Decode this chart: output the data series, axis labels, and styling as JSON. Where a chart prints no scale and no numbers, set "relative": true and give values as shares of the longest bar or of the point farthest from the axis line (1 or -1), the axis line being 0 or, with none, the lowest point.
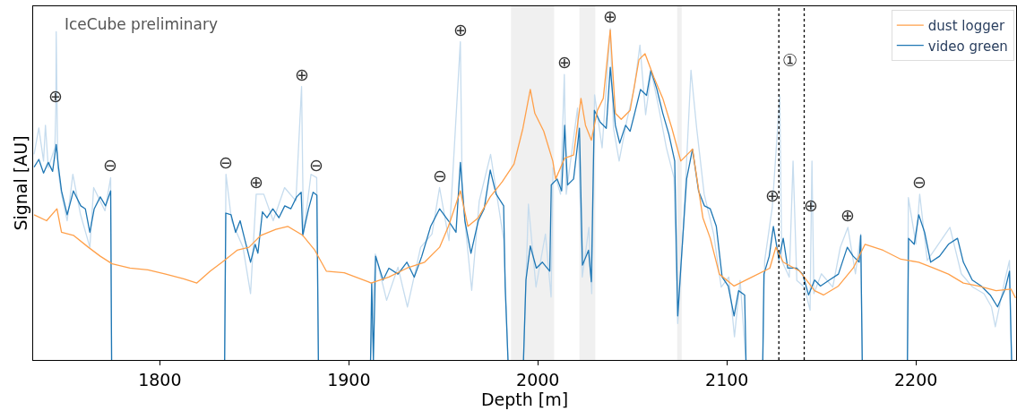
{
  "chart_data": {
    "type": "line",
    "relative": true,
    "xlabel": "Depth [m]",
    "ylabel": "Signal [AU]",
    "xlim": [
      1733,
      2253
    ],
    "xticks": [
      1800,
      1900,
      2000,
      2100,
      2200
    ],
    "tick_labels": "x",
    "grid": false,
    "legend": "top right",
    "series": [
      {
        "name": "dust logger",
        "color": "#ffa04a",
        "x": [
          1733.5,
          1740.1,
          1745.6,
          1748,
          1754.3,
          1762.2,
          1768.5,
          1774.8,
          1784.2,
          1793.7,
          1803.1,
          1812.6,
          1819.6,
          1826.7,
          1833,
          1840.9,
          1847.2,
          1853.5,
          1861.4,
          1867.7,
          1875.6,
          1882,
          1888.1,
          1897.6,
          1910.2,
          1911.8,
          1921.2,
          1930.7,
          1940.1,
          1948,
          1952.7,
          1959,
          1963,
          1968.5,
          1974.8,
          1981.1,
          1987.4,
          1992.1,
          1996,
          1998.4,
          2003.1,
          2007.9,
          2009.4,
          2014.2,
          2018.9,
          2022.8,
          2025.2,
          2028.3,
          2031.5,
          2034.6,
          2038.3,
          2041,
          2044.1,
          2048.8,
          2053.5,
          2056.7,
          2061.4,
          2066.1,
          2070.9,
          2075.6,
          2080.3,
          2081.8,
          2087.3,
          2091.2,
          2096,
          2103.8,
          2113.3,
          2122.7,
          2125.9,
          2129.8,
          2138.5,
          2146.4,
          2151.1,
          2159,
          2166.8,
          2173.1,
          2182.6,
          2192,
          2201.5,
          2209.4,
          2217.2,
          2225.1,
          2233,
          2242.4,
          2250.3,
          2252.7
        ],
        "values": [
          0.438,
          0.42,
          0.456,
          0.385,
          0.376,
          0.34,
          0.313,
          0.29,
          0.277,
          0.272,
          0.259,
          0.245,
          0.232,
          0.268,
          0.295,
          0.331,
          0.34,
          0.376,
          0.394,
          0.403,
          0.376,
          0.331,
          0.268,
          0.263,
          0.236,
          0.232,
          0.25,
          0.277,
          0.295,
          0.34,
          0.403,
          0.51,
          0.403,
          0.429,
          0.492,
          0.537,
          0.591,
          0.699,
          0.816,
          0.744,
          0.69,
          0.6,
          0.546,
          0.609,
          0.618,
          0.789,
          0.708,
          0.663,
          0.753,
          0.789,
          0.996,
          0.744,
          0.726,
          0.753,
          0.906,
          0.924,
          0.852,
          0.789,
          0.699,
          0.6,
          0.627,
          0.636,
          0.429,
          0.367,
          0.259,
          0.223,
          0.25,
          0.277,
          0.34,
          0.295,
          0.268,
          0.209,
          0.196,
          0.223,
          0.277,
          0.349,
          0.331,
          0.304,
          0.295,
          0.277,
          0.259,
          0.232,
          0.223,
          0.209,
          0.214,
          0.187
        ]
      },
      {
        "name": "video green",
        "color": "#1f77b4",
        "x": [
          1733.5,
          1736,
          1738.5,
          1741,
          1743.3,
          1745.2,
          1746.4,
          1748,
          1751,
          1754.3,
          1758.2,
          1760.6,
          1763,
          1765.3,
          1768.5,
          1771.3,
          1774,
          1774.5,
          1800,
          1834.3,
          1834.9,
          1837.7,
          1840.1,
          1842.5,
          1844.8,
          1848,
          1850.4,
          1851.9,
          1854.3,
          1856.7,
          1859.8,
          1863,
          1866.1,
          1869.3,
          1872.4,
          1874.8,
          1875.6,
          1878.7,
          1881.1,
          1883.1,
          1883.9,
          1897,
          1911.5,
          1912.1,
          1913,
          1914.2,
          1918.1,
          1921.2,
          1926,
          1930.7,
          1934.6,
          1938.6,
          1943.3,
          1948,
          1952.7,
          1956.7,
          1959,
          1961.4,
          1964.6,
          1968.5,
          1971.6,
          1974.8,
          1977.9,
          1981.9,
          1982.7,
          1984.2,
          1988,
          1992.4,
          1993.7,
          1996,
          1999.2,
          2002.4,
          2006.3,
          2007.1,
          2010.2,
          2012.6,
          2014.2,
          2015.7,
          2018.9,
          2022,
          2023.6,
          2026.8,
          2028.3,
          2029.9,
          2033,
          2036.2,
          2038.3,
          2041,
          2043.3,
          2046.4,
          2048.8,
          2051.2,
          2054.3,
          2057.5,
          2059.8,
          2063,
          2066.1,
          2069.3,
          2072.4,
          2074,
          2075.6,
          2078.7,
          2081.8,
          2085,
          2088.1,
          2091.2,
          2094.4,
          2097.5,
          2100.7,
          2103.8,
          2106.2,
          2109.4,
          2110.1,
          2114,
          2119,
          2119.6,
          2122.4,
          2124.6,
          2127.5,
          2129.8,
          2132.2,
          2136.9,
          2140.1,
          2143.2,
          2146.4,
          2149.5,
          2154.2,
          2159,
          2163.7,
          2166.8,
          2170,
          2170.8,
          2171.6,
          2185,
          2195.5,
          2196.1,
          2199.1,
          2201.5,
          2204.6,
          2207.8,
          2212.5,
          2217.2,
          2222,
          2225.1,
          2229.8,
          2234.6,
          2239.3,
          2243.2,
          2247.2,
          2249.5,
          2250.6
        ],
        "values": [
          0.582,
          0.605,
          0.564,
          0.596,
          0.569,
          0.65,
          0.582,
          0.51,
          0.438,
          0.51,
          0.465,
          0.456,
          0.385,
          0.456,
          0.492,
          0.465,
          0.51,
          0,
          null,
          0,
          0.443,
          0.438,
          0.385,
          0.42,
          0.367,
          0.295,
          0.349,
          0.322,
          0.447,
          0.429,
          0.456,
          0.429,
          0.465,
          0.456,
          0.492,
          0.506,
          0.376,
          0.456,
          0.506,
          0.497,
          0,
          null,
          0,
          0.232,
          0,
          0.313,
          0.241,
          0.277,
          0.259,
          0.295,
          0.25,
          0.313,
          0.403,
          0.456,
          0.42,
          0.385,
          0.596,
          0.42,
          0.322,
          0.42,
          0.456,
          0.573,
          0.501,
          0.465,
          0.223,
          0,
          null,
          0,
          0.241,
          0.344,
          0.277,
          0.295,
          0.268,
          0.528,
          0.546,
          0.51,
          0.708,
          0.528,
          0.546,
          0.699,
          0.286,
          0.331,
          0.236,
          0.753,
          0.717,
          0.699,
          0.883,
          0.708,
          0.654,
          0.708,
          0.69,
          0.744,
          0.816,
          0.798,
          0.874,
          0.816,
          0.744,
          0.681,
          0.6,
          0.133,
          0.277,
          0.546,
          0.636,
          0.51,
          0.465,
          0.456,
          0.403,
          0.25,
          0.223,
          0.133,
          0.209,
          0.196,
          0,
          null,
          0,
          0.259,
          0.313,
          0.403,
          0.304,
          0.367,
          0.277,
          0.277,
          0.259,
          0.196,
          0.241,
          0.223,
          0.241,
          0.259,
          0.34,
          0.313,
          0.295,
          0.376,
          0,
          null,
          0,
          0.367,
          0.349,
          0.438,
          0.385,
          0.295,
          0.313,
          0.349,
          0.367,
          0.295,
          0.241,
          0.223,
          0.196,
          0.16,
          0.214,
          0.268,
          0
        ]
      },
      {
        "color": "#c6dcee",
        "x": [
          1733.5,
          1736,
          1738.5,
          1739.5,
          1741,
          1744.5,
          1745.0,
          1745.2,
          1746,
          1748,
          1751,
          1754,
          1758,
          1763,
          1765,
          1771,
          1774,
          1774.5,
          1800,
          1834.3,
          1835,
          1838,
          1844,
          1848,
          1851,
          1855,
          1860,
          1866,
          1872,
          1875,
          1876,
          1880,
          1883,
          1883.9,
          1897,
          1911.5,
          1914,
          1920,
          1926,
          1931,
          1938,
          1944,
          1948,
          1953,
          1959,
          1960,
          1965,
          1969,
          1975,
          1982,
          1984.2,
          1988,
          1992.4,
          1995,
          1999,
          2004,
          2007,
          2008,
          2012,
          2014,
          2015,
          2021,
          2023.5,
          2027,
          2028.5,
          2030,
          2034,
          2038.3,
          2040,
          2043,
          2047,
          2051,
          2054,
          2057,
          2060,
          2064,
          2068,
          2072,
          2074,
          2077,
          2081,
          2084,
          2088,
          2093,
          2097,
          2101,
          2104,
          2107,
          2110,
          2114,
          2119,
          2120,
          2124,
          2128,
          2129,
          2133,
          2135,
          2137,
          2141,
          2144,
          2144.6,
          2145,
          2146,
          2150,
          2156,
          2160,
          2164,
          2168,
          2170.8,
          2171.6,
          2185,
          2195.5,
          2196,
          2200,
          2202,
          2206,
          2212,
          2218,
          2224,
          2230,
          2236,
          2240,
          2242,
          2247,
          2249.5,
          2250.6
        ],
        "values": [
          0.62,
          0.7,
          0.6,
          0.708,
          0.58,
          0.64,
          0.76,
          0.99,
          0.58,
          0.5,
          0.42,
          0.56,
          0.44,
          0.34,
          0.52,
          0.45,
          0.55,
          0,
          null,
          0,
          0.56,
          0.42,
          0.34,
          0.2,
          0.5,
          0.5,
          0.42,
          0.52,
          0.48,
          0.825,
          0.38,
          0.56,
          0.55,
          0,
          null,
          0,
          0.32,
          0.18,
          0.28,
          0.16,
          0.34,
          0.38,
          0.52,
          0.36,
          0.96,
          0.5,
          0.21,
          0.48,
          0.62,
          0.36,
          0,
          null,
          0,
          0.47,
          0.22,
          0.38,
          0.19,
          0.58,
          0.5,
          0.861,
          0.5,
          0.76,
          0.25,
          0.4,
          0.2,
          0.8,
          0.64,
          1,
          0.7,
          0.6,
          0.72,
          0.82,
          0.95,
          0.74,
          0.87,
          0.76,
          0.64,
          0.55,
          0.11,
          0.4,
          0.874,
          0.7,
          0.5,
          0.38,
          0.22,
          0.25,
          0.07,
          0.24,
          0,
          null,
          0,
          0.3,
          0.46,
          0.798,
          0.3,
          0.25,
          0.6,
          0.24,
          0.22,
          0.15,
          0.43,
          0.6,
          0.2,
          0.26,
          0.22,
          0.34,
          0.4,
          0.26,
          0.38,
          0,
          null,
          0,
          0.49,
          0.35,
          0.5,
          0.3,
          0.35,
          0.4,
          0.26,
          0.22,
          0.2,
          0.16,
          0.1,
          0.24,
          0.3,
          0
        ]
      }
    ],
    "ref_lines": [
      {
        "axis": "x",
        "value": 2127.5,
        "color": "#000000",
        "line_style": "dotted",
        "label": "①"
      },
      {
        "axis": "x",
        "value": 2140.9,
        "color": "#000000",
        "line_style": "dotted"
      }
    ],
    "bands": [
      {
        "axis": "x",
        "from": 1985.8,
        "to": 2008.6,
        "color": "#f0f0f0"
      },
      {
        "axis": "x",
        "from": 2022,
        "to": 2030.4,
        "color": "#f0f0f0"
      },
      {
        "axis": "x",
        "from": 2073.7,
        "to": 2076.1,
        "color": "#f0f0f0"
      }
    ],
    "annotations": [
      "IceCube preliminary",
      {
        "text": "⊕",
        "x": 1745.0,
        "y": 0.76
      },
      {
        "text": "⊖",
        "x": 1774,
        "y": 0.55
      },
      {
        "text": "⊖",
        "x": 1835,
        "y": 0.56
      },
      {
        "text": "⊕",
        "x": 1851,
        "y": 0.5
      },
      {
        "text": "⊕",
        "x": 1875,
        "y": 0.825
      },
      {
        "text": "⊖",
        "x": 1883,
        "y": 0.55
      },
      {
        "text": "⊖",
        "x": 1948,
        "y": 0.52
      },
      {
        "text": "⊕",
        "x": 1959,
        "y": 0.96
      },
      {
        "text": "⊕",
        "x": 2014,
        "y": 0.861
      },
      {
        "text": "⊕",
        "x": 2038.3,
        "y": 1
      },
      {
        "text": "⊕",
        "x": 2124,
        "y": 0.46
      },
      {
        "text": "⊕",
        "x": 2144.6,
        "y": 0.43
      },
      {
        "text": "⊕",
        "x": 2164,
        "y": 0.4
      },
      {
        "text": "⊖",
        "x": 2202,
        "y": 0.5
      }
    ]
  }
}
